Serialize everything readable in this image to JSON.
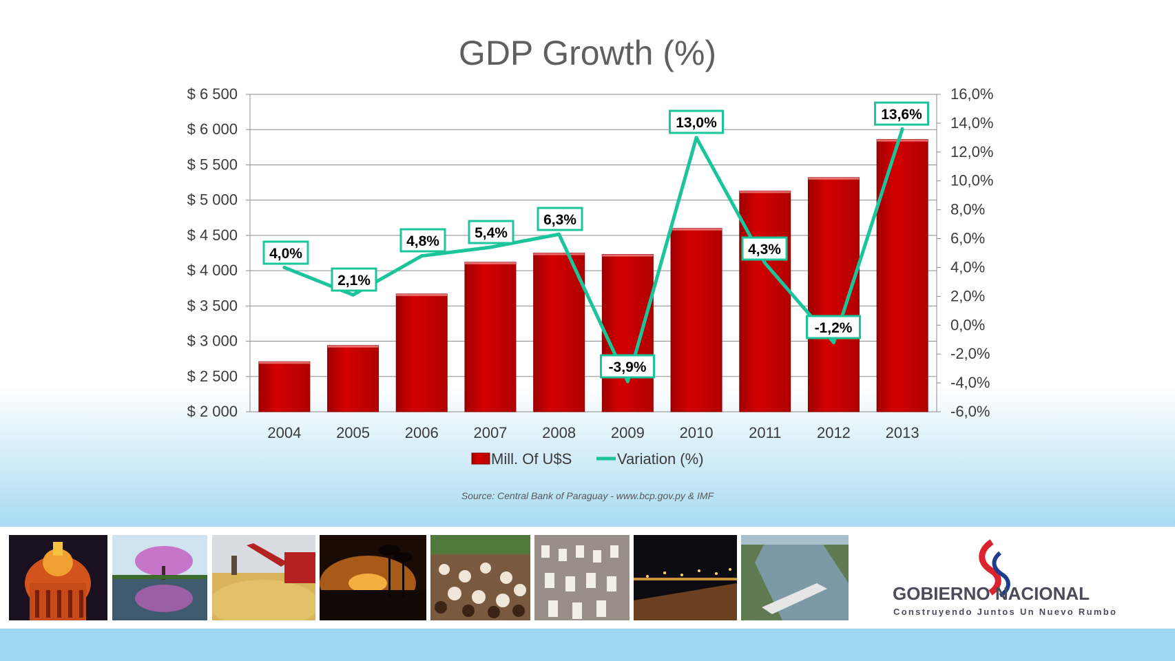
{
  "title": "GDP Growth (%)",
  "source": "Source: Central Bank of  Paraguay  - www.bcp.gov.py & IMF",
  "logo": {
    "line1a": "GOBIERNO",
    "line1b": "NACIONAL",
    "tagline": "Construyendo Juntos Un Nuevo Rumbo"
  },
  "colors": {
    "bar": "#c00000",
    "line": "#1bc49a",
    "title": "#5f5f5f",
    "band": "#9ed7f2",
    "logo_text": "#4a4a5a",
    "logo_red": "#d9232e",
    "logo_blue": "#1d3e8f"
  },
  "chart_data": {
    "type": "bar",
    "title": "GDP Growth (%)",
    "categories": [
      "2004",
      "2005",
      "2006",
      "2007",
      "2008",
      "2009",
      "2010",
      "2011",
      "2012",
      "2013"
    ],
    "series": [
      {
        "name": "Mill. Of U$S",
        "type": "bar",
        "axis": "left",
        "values": [
          2710,
          2940,
          3670,
          4120,
          4250,
          4230,
          4600,
          5130,
          5320,
          5860
        ]
      },
      {
        "name": "Variation (%)",
        "type": "line",
        "axis": "right",
        "values": [
          4.0,
          2.1,
          4.8,
          5.4,
          6.3,
          -3.9,
          13.0,
          4.3,
          -1.2,
          13.6
        ],
        "labels": [
          "4,0%",
          "2,1%",
          "4,8%",
          "5,4%",
          "6,3%",
          "-3,9%",
          "13,0%",
          "4,3%",
          "-1,2%",
          "13,6%"
        ]
      }
    ],
    "left_axis": {
      "ylim": [
        2000,
        6500
      ],
      "ticks": [
        "$ 2 000",
        "$ 2 500",
        "$ 3 000",
        "$ 3 500",
        "$ 4 000",
        "$ 4 500",
        "$ 5 000",
        "$ 5 500",
        "$ 6 000",
        "$ 6 500"
      ]
    },
    "right_axis": {
      "ylim": [
        -6,
        16
      ],
      "ticks": [
        "-6,0%",
        "-4,0%",
        "-2,0%",
        "0,0%",
        "2,0%",
        "4,0%",
        "6,0%",
        "8,0%",
        "10,0%",
        "12,0%",
        "14,0%",
        "16,0%"
      ]
    },
    "grid": true,
    "legend": "bottom"
  }
}
